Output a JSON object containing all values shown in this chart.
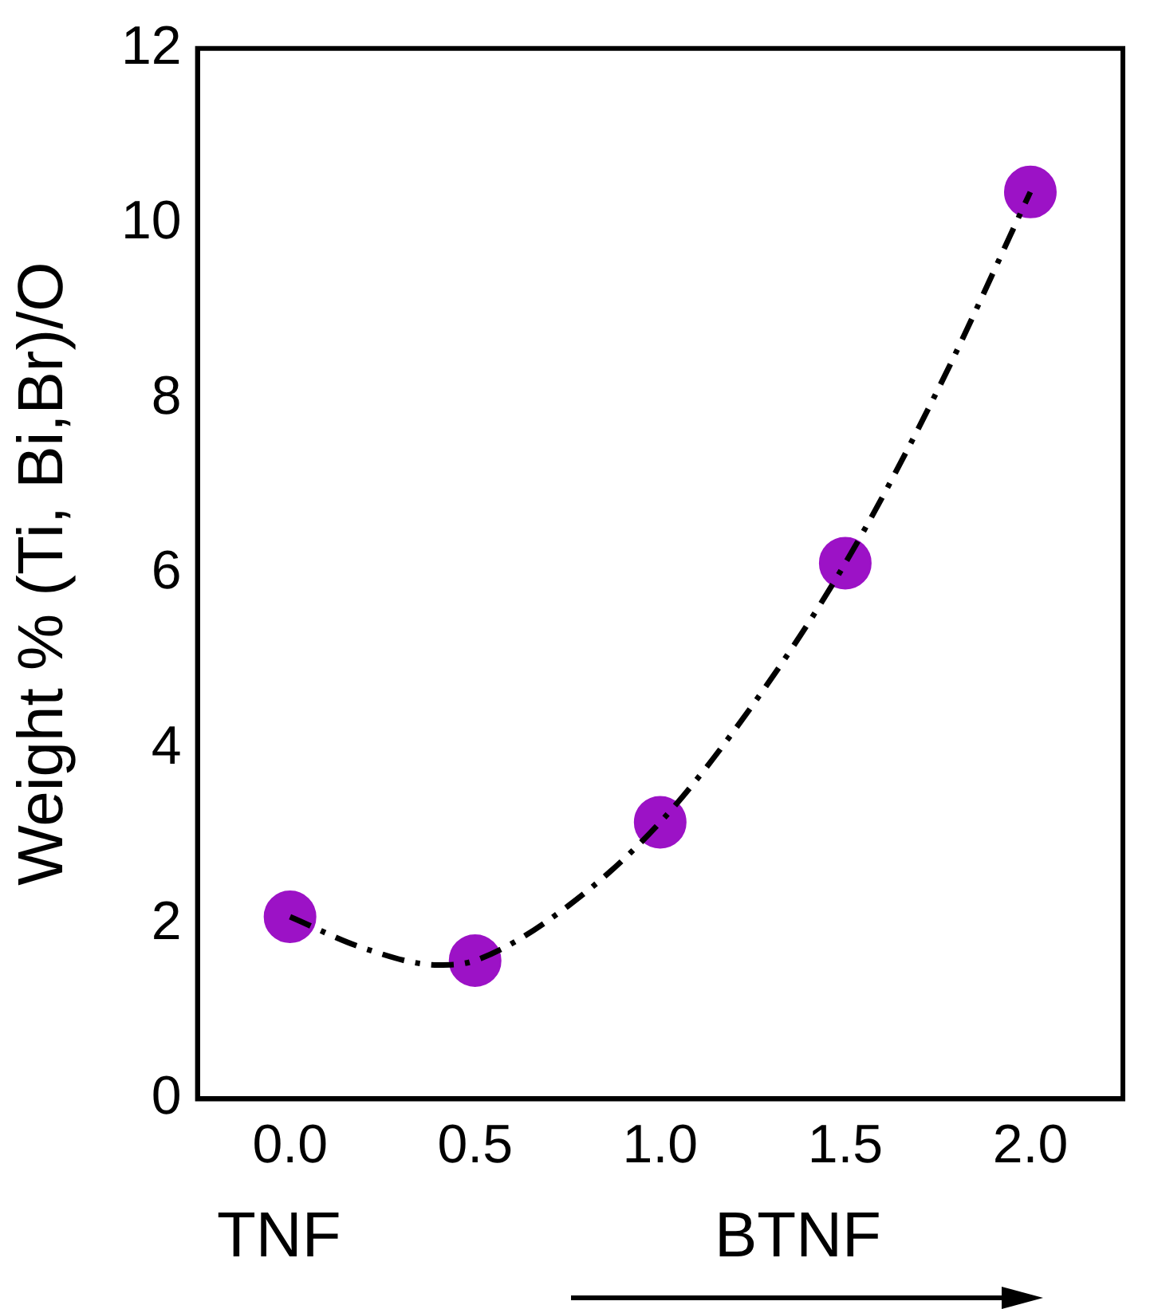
{
  "chart_data": {
    "type": "scatter",
    "ylabel": "Weight % (Ti, Bi,Br)/O",
    "x": [
      0,
      0.5,
      1,
      1.5,
      2
    ],
    "series": [
      {
        "color": "#9c12c6",
        "marker": "circle",
        "values": [
          2.08,
          1.58,
          3.16,
          6.12,
          10.36
        ]
      },
      {
        "type": "line",
        "color": "#000000",
        "line_style": "dashed",
        "marker": "none",
        "x": [
          0,
          0.2,
          0.4,
          0.5,
          0.75,
          1,
          1.25,
          1.5,
          1.75,
          2
        ],
        "values": [
          2.08,
          1.72,
          1.53,
          1.58,
          2.2,
          3.16,
          4.5,
          6.12,
          8.1,
          10.36
        ]
      }
    ],
    "xlim": [
      -0.25,
      2.25
    ],
    "ylim": [
      0,
      12
    ],
    "xticks": [
      {
        "value": 0,
        "label": "0.0"
      },
      0.5,
      {
        "value": 1,
        "label": "1.0"
      },
      1.5,
      {
        "value": 2,
        "label": "2.0"
      }
    ],
    "yticks": [
      0,
      2,
      4,
      6,
      8,
      10,
      12
    ],
    "annotations": [
      "TNF",
      "BTNF"
    ],
    "grid": false,
    "legend": false
  }
}
